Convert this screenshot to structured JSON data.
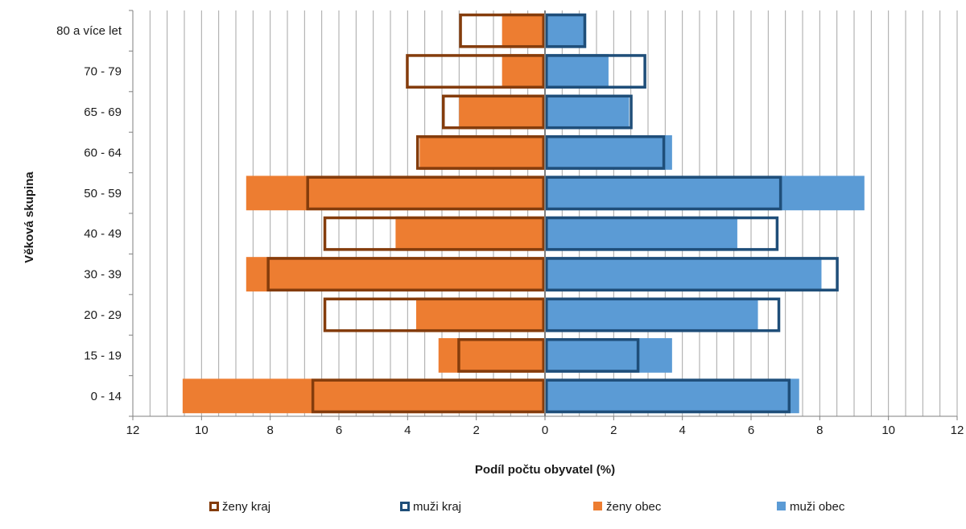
{
  "chart_data": {
    "type": "bar",
    "orientation": "horizontal-population-pyramid",
    "xlabel": "Podíl počtu obyvatel (%)",
    "ylabel": "Věková skupina",
    "xlim": [
      -12,
      12
    ],
    "x_ticks": [
      12,
      10,
      8,
      6,
      4,
      2,
      0,
      2,
      4,
      6,
      8,
      10,
      12
    ],
    "grid": "vertical minor gridlines",
    "legend_position": "bottom",
    "categories": [
      "0 - 14",
      "15 - 19",
      "20 - 29",
      "30 - 39",
      "40 - 49",
      "50 - 59",
      "60 - 64",
      "65 - 69",
      "70 - 79",
      "80 a více let"
    ],
    "series": [
      {
        "name": "ženy kraj",
        "side": "left",
        "style": "outline",
        "color": "#843C0C",
        "values": [
          6.8,
          2.55,
          6.45,
          8.1,
          6.45,
          6.95,
          3.75,
          3.0,
          4.05,
          2.5
        ]
      },
      {
        "name": "muži kraj",
        "side": "right",
        "style": "outline",
        "color": "#1F4E79",
        "values": [
          7.15,
          2.75,
          6.85,
          8.55,
          6.8,
          6.9,
          3.5,
          2.55,
          2.95,
          1.2
        ]
      },
      {
        "name": "ženy obec",
        "side": "left",
        "style": "filled",
        "color": "#ED7D31",
        "values": [
          10.55,
          3.1,
          3.75,
          8.7,
          4.35,
          8.7,
          3.65,
          2.5,
          1.25,
          1.25
        ]
      },
      {
        "name": "muži obec",
        "side": "right",
        "style": "filled",
        "color": "#5B9BD5",
        "values": [
          7.4,
          3.7,
          6.2,
          8.05,
          5.6,
          9.3,
          3.7,
          2.45,
          1.85,
          1.2
        ]
      }
    ]
  }
}
